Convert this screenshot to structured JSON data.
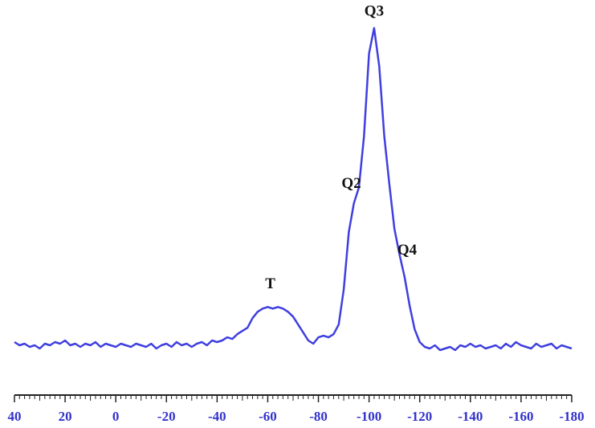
{
  "chart_data": {
    "type": "line",
    "x": [
      40,
      38,
      36,
      34,
      32,
      30,
      28,
      26,
      24,
      22,
      20,
      18,
      16,
      14,
      12,
      10,
      8,
      6,
      4,
      2,
      0,
      -2,
      -4,
      -6,
      -8,
      -10,
      -12,
      -14,
      -16,
      -18,
      -20,
      -22,
      -24,
      -26,
      -28,
      -30,
      -32,
      -34,
      -36,
      -38,
      -40,
      -42,
      -44,
      -46,
      -48,
      -50,
      -52,
      -54,
      -56,
      -58,
      -60,
      -62,
      -64,
      -66,
      -68,
      -70,
      -72,
      -74,
      -76,
      -78,
      -80,
      -82,
      -84,
      -86,
      -88,
      -90,
      -92,
      -94,
      -96,
      -98,
      -100,
      -102,
      -104,
      -106,
      -108,
      -110,
      -112,
      -114,
      -116,
      -118,
      -120,
      -122,
      -124,
      -126,
      -128,
      -130,
      -132,
      -134,
      -136,
      -138,
      -140,
      -142,
      -144,
      -146,
      -148,
      -150,
      -152,
      -154,
      -156,
      -158,
      -160,
      -162,
      -164,
      -166,
      -168,
      -170,
      -172,
      -174,
      -176,
      -178,
      -180
    ],
    "series": [
      {
        "color": "#3f3fe0",
        "values": [
          1.5,
          0.5,
          1,
          0,
          0.5,
          -0.5,
          1,
          0.5,
          1.5,
          1,
          2,
          0.5,
          1,
          0,
          1,
          0.5,
          1.5,
          0,
          1,
          0.5,
          0,
          1,
          0.5,
          0,
          1,
          0.5,
          0,
          1,
          -0.5,
          0.5,
          1,
          0,
          1.5,
          0.5,
          1,
          0,
          1,
          1.5,
          0.5,
          2,
          1.5,
          2,
          3,
          2.5,
          4,
          5,
          6,
          9,
          11,
          12,
          12.5,
          12,
          12.5,
          12,
          11,
          9.5,
          7,
          4.5,
          2,
          1,
          3,
          3.5,
          3,
          4,
          7,
          18,
          36,
          45,
          50,
          66,
          92,
          100,
          88,
          66,
          51,
          37,
          29,
          22,
          13,
          5.5,
          1.5,
          0,
          -0.5,
          0.5,
          -1,
          -0.5,
          0,
          -1,
          0.5,
          0,
          1,
          0,
          0.5,
          -0.5,
          0,
          0.5,
          -0.5,
          1,
          0,
          1.5,
          0.5,
          0,
          -0.5,
          1,
          0,
          0.5,
          1,
          -0.5,
          0.5,
          0,
          -0.5
        ]
      }
    ],
    "xlim": [
      40,
      -180
    ],
    "xticks": [
      40,
      20,
      0,
      -20,
      -40,
      -60,
      -80,
      -100,
      -120,
      -140,
      -160,
      -180
    ],
    "ylim": [
      -10,
      105
    ],
    "annotations": [
      {
        "text": "T",
        "x": -61,
        "y": 19.5
      },
      {
        "text": "Q2",
        "x": -93,
        "y": 51
      },
      {
        "text": "Q3",
        "x": -102,
        "y": 105
      },
      {
        "text": "Q4",
        "x": -115,
        "y": 30
      }
    ]
  }
}
